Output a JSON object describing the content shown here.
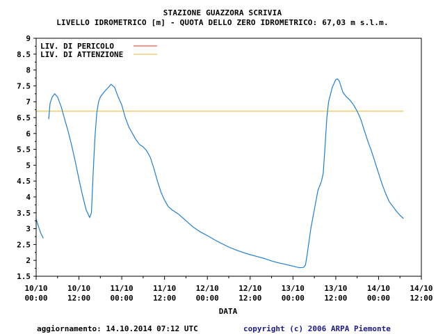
{
  "page": {
    "title_line1": "STAZIONE GUAZZORA SCRIVIA",
    "title_line2": "LIVELLO IDROMETRICO [m] - QUOTA DELLO ZERO IDROMETRICO: 67,03   m s.l.m.",
    "footer_left": "aggiornamento: 14.10.2014 07:12 UTC",
    "footer_right": "copyright (c) 2006 ARPA Piemonte"
  },
  "chart_data": {
    "type": "line",
    "title": "STAZIONE GUAZZORA SCRIVIA",
    "subtitle": "LIVELLO IDROMETRICO [m] - QUOTA DELLO ZERO IDROMETRICO: 67,03   m s.l.m.",
    "xlabel": "DATA",
    "ylabel": "",
    "x_unit": "hours from 10/10 00:00",
    "xlim": [
      0,
      108
    ],
    "ylim": [
      1.5,
      9
    ],
    "yticks": [
      1.5,
      2,
      2.5,
      3,
      3.5,
      4,
      4.5,
      5,
      5.5,
      6,
      6.5,
      7,
      7.5,
      8,
      8.5,
      9
    ],
    "xticks": [
      {
        "x": 0,
        "line1": "10/10",
        "line2": "00:00"
      },
      {
        "x": 12,
        "line1": "10/10",
        "line2": "12:00"
      },
      {
        "x": 24,
        "line1": "11/10",
        "line2": "00:00"
      },
      {
        "x": 36,
        "line1": "11/10",
        "line2": "12:00"
      },
      {
        "x": 48,
        "line1": "12/10",
        "line2": "00:00"
      },
      {
        "x": 60,
        "line1": "12/10",
        "line2": "12:00"
      },
      {
        "x": 72,
        "line1": "13/10",
        "line2": "00:00"
      },
      {
        "x": 84,
        "line1": "13/10",
        "line2": "12:00"
      },
      {
        "x": 96,
        "line1": "14/10",
        "line2": "00:00"
      },
      {
        "x": 108,
        "line1": "14/10",
        "line2": "12:00"
      }
    ],
    "legend": [
      {
        "label": "LIV. DI PERICOLO",
        "color": "#e8321e"
      },
      {
        "label": "LIV. DI ATTENZIONE",
        "color": "#e6b432"
      }
    ],
    "legend_position": "top-left",
    "grid": false,
    "thresholds": [
      {
        "name": "LIV. DI ATTENZIONE",
        "value": 6.7,
        "x_start": 0,
        "x_end": 103,
        "color": "#e6b432"
      }
    ],
    "series": [
      {
        "color": "#1e7fd2",
        "segments": [
          [
            [
              0,
              3.3
            ],
            [
              0.7,
              3.05
            ],
            [
              1.3,
              2.85
            ],
            [
              2,
              2.7
            ]
          ],
          [
            [
              3.5,
              6.45
            ],
            [
              3.9,
              6.95
            ],
            [
              4.5,
              7.15
            ],
            [
              5.2,
              7.25
            ],
            [
              6,
              7.15
            ],
            [
              7,
              6.85
            ],
            [
              8,
              6.45
            ],
            [
              9,
              6.05
            ],
            [
              10,
              5.6
            ],
            [
              11,
              5.1
            ],
            [
              12,
              4.55
            ],
            [
              13,
              4.05
            ],
            [
              14,
              3.6
            ],
            [
              15,
              3.35
            ],
            [
              15.5,
              3.5
            ],
            [
              16,
              4.8
            ],
            [
              16.5,
              5.9
            ],
            [
              17,
              6.65
            ],
            [
              17.5,
              7.0
            ],
            [
              18,
              7.15
            ],
            [
              19,
              7.3
            ],
            [
              20,
              7.42
            ],
            [
              21,
              7.55
            ],
            [
              22,
              7.45
            ],
            [
              23,
              7.15
            ],
            [
              24,
              6.9
            ],
            [
              25,
              6.5
            ],
            [
              26,
              6.2
            ],
            [
              27,
              6.0
            ],
            [
              28,
              5.8
            ],
            [
              29,
              5.65
            ],
            [
              30,
              5.58
            ],
            [
              31,
              5.45
            ],
            [
              32,
              5.25
            ],
            [
              33,
              4.9
            ],
            [
              34,
              4.5
            ],
            [
              35,
              4.15
            ],
            [
              36,
              3.9
            ],
            [
              37,
              3.7
            ],
            [
              38,
              3.6
            ],
            [
              40,
              3.45
            ],
            [
              42,
              3.25
            ],
            [
              44,
              3.05
            ],
            [
              46,
              2.9
            ],
            [
              48,
              2.78
            ],
            [
              50,
              2.65
            ],
            [
              52,
              2.53
            ],
            [
              54,
              2.42
            ],
            [
              56,
              2.33
            ],
            [
              58,
              2.25
            ],
            [
              60,
              2.18
            ],
            [
              62,
              2.12
            ],
            [
              64,
              2.06
            ],
            [
              66,
              1.98
            ],
            [
              68,
              1.92
            ],
            [
              70,
              1.87
            ],
            [
              72,
              1.82
            ],
            [
              73,
              1.79
            ],
            [
              74,
              1.77
            ],
            [
              75,
              1.78
            ],
            [
              75.5,
              1.85
            ],
            [
              76,
              2.2
            ],
            [
              77,
              3.0
            ],
            [
              78,
              3.6
            ],
            [
              79,
              4.2
            ],
            [
              80,
              4.5
            ],
            [
              80.5,
              4.75
            ],
            [
              81,
              5.6
            ],
            [
              81.5,
              6.5
            ],
            [
              82,
              7.0
            ],
            [
              83,
              7.45
            ],
            [
              84,
              7.7
            ],
            [
              84.5,
              7.72
            ],
            [
              85,
              7.65
            ],
            [
              86,
              7.3
            ],
            [
              87,
              7.15
            ],
            [
              88,
              7.05
            ],
            [
              89,
              6.9
            ],
            [
              90,
              6.7
            ],
            [
              91,
              6.45
            ],
            [
              92,
              6.1
            ],
            [
              93,
              5.75
            ],
            [
              94,
              5.45
            ],
            [
              95,
              5.1
            ],
            [
              96,
              4.75
            ],
            [
              97,
              4.4
            ],
            [
              98,
              4.1
            ],
            [
              99,
              3.85
            ],
            [
              100,
              3.7
            ],
            [
              101,
              3.55
            ],
            [
              102,
              3.42
            ],
            [
              103,
              3.32
            ]
          ]
        ]
      }
    ]
  }
}
